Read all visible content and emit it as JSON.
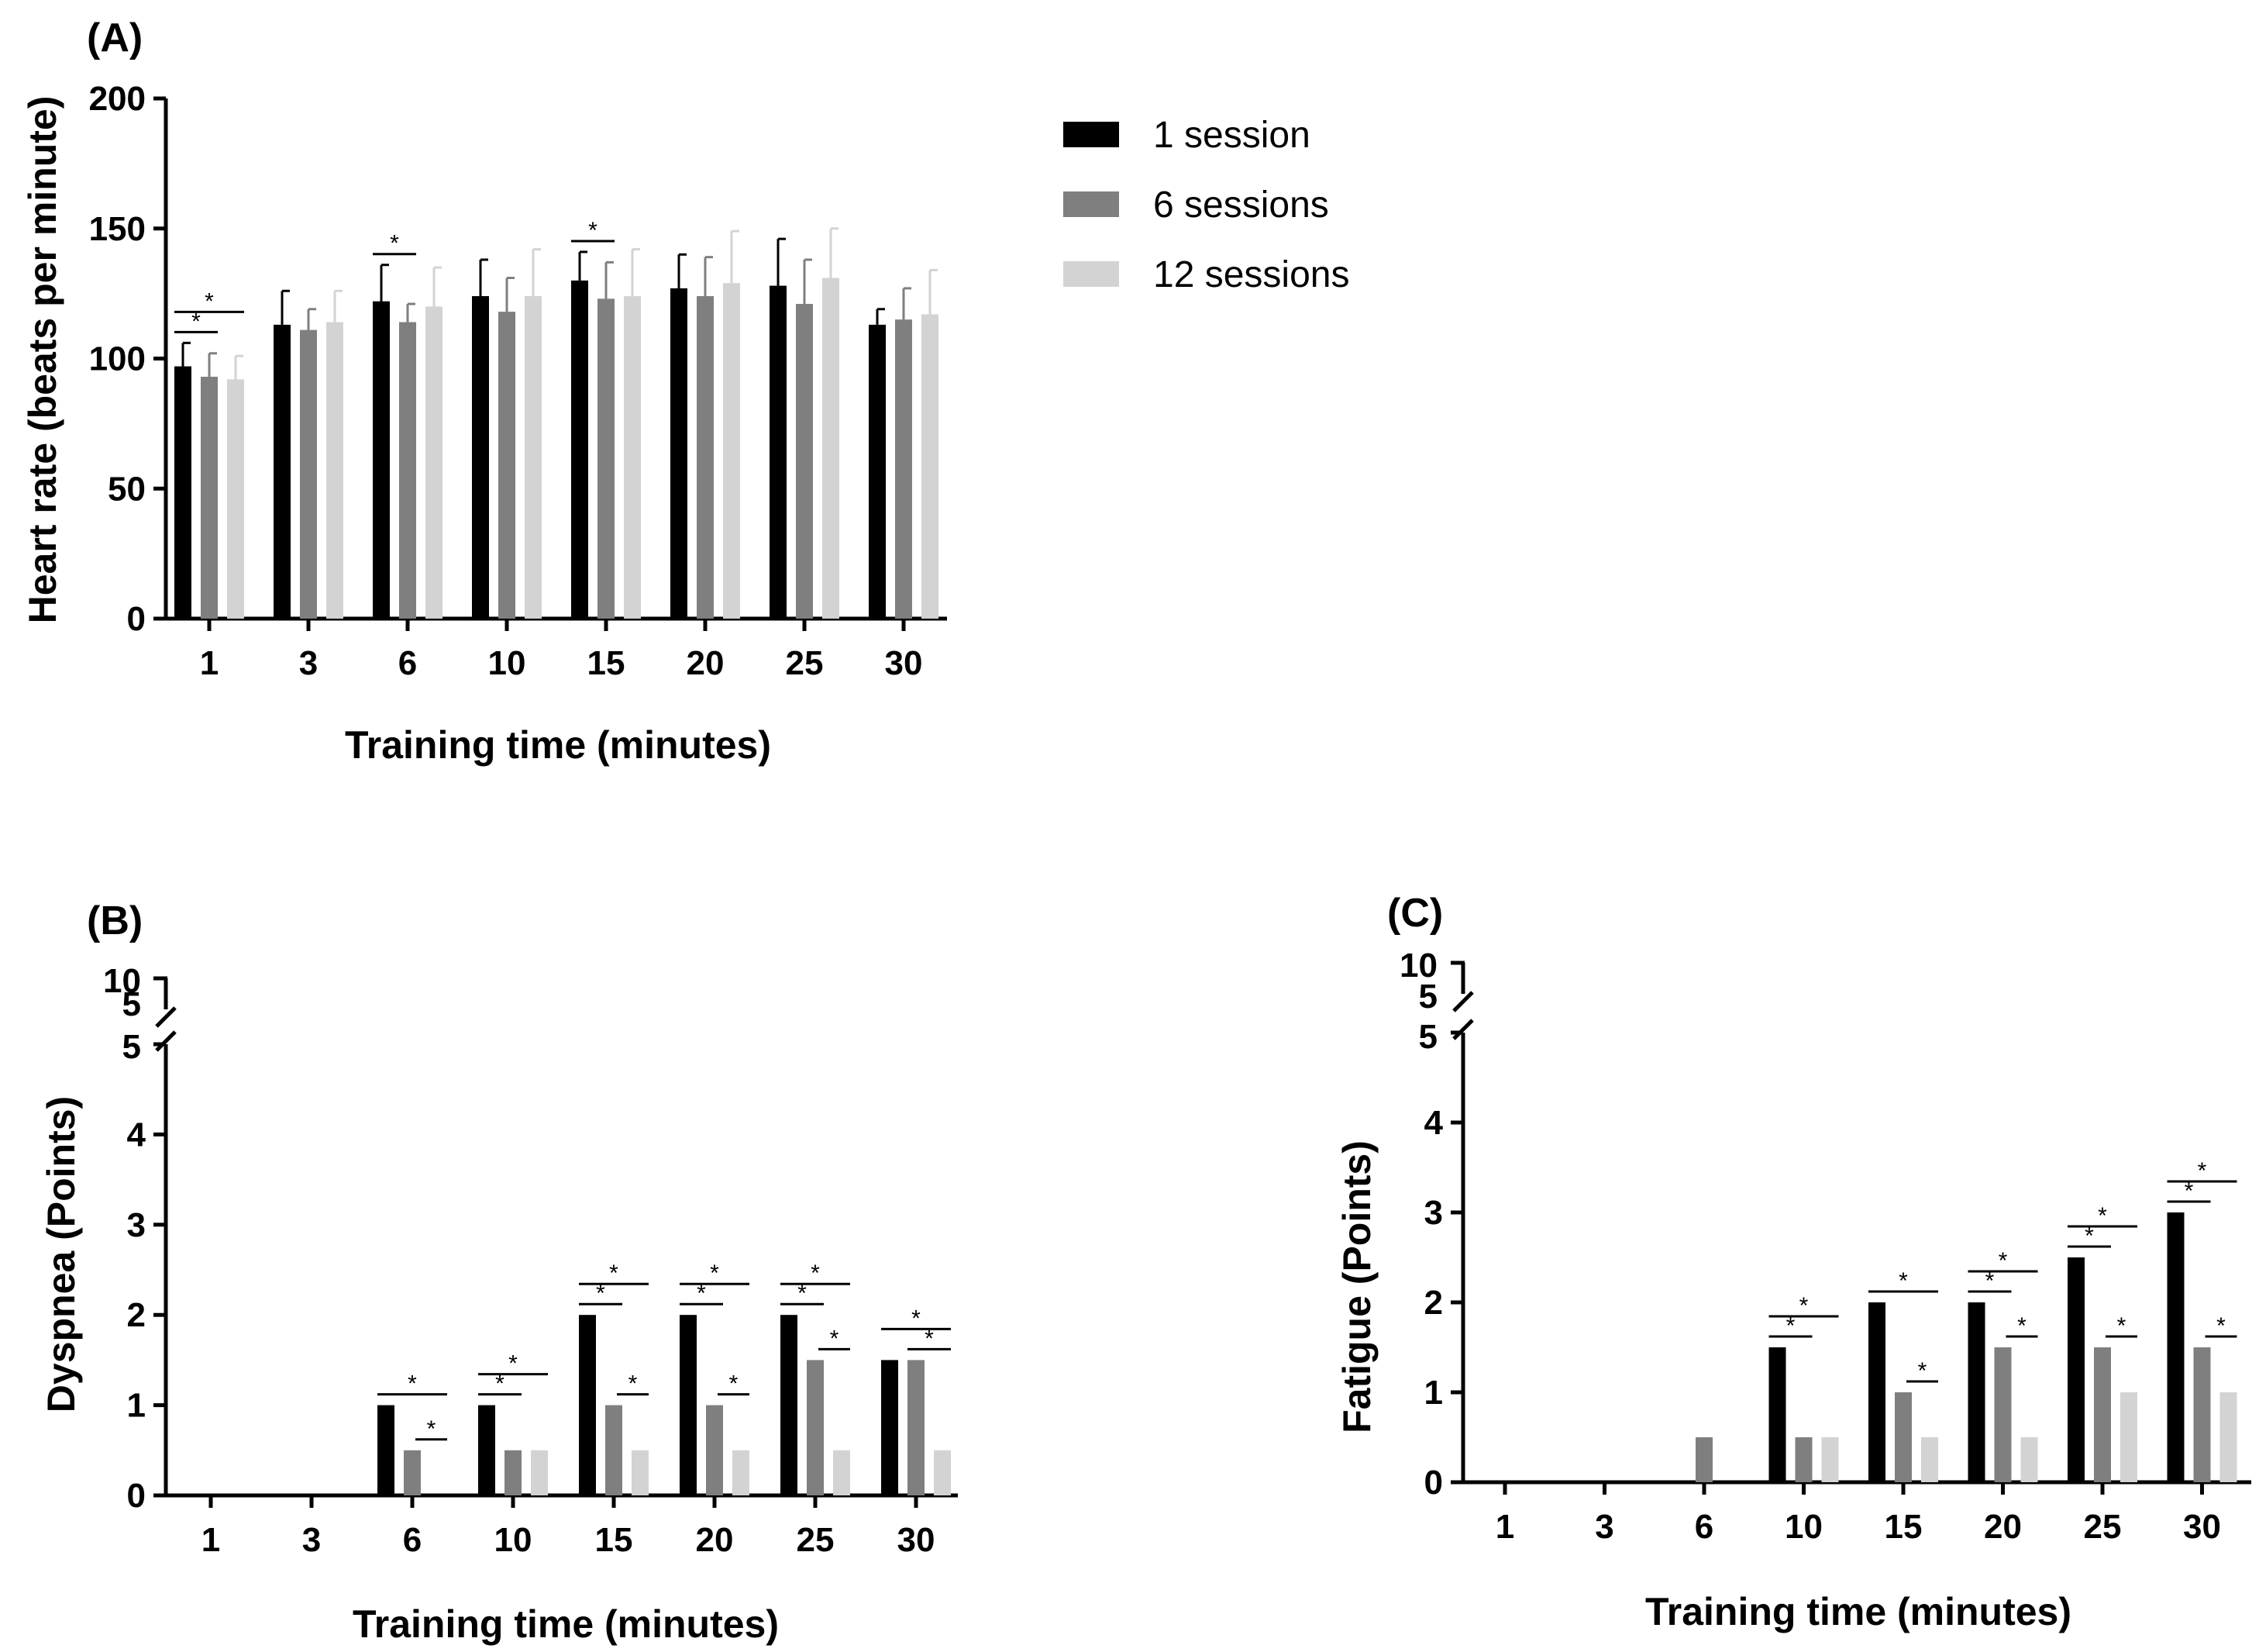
{
  "colors": {
    "one_session": "#000000",
    "six_sessions": "#7f7f7f",
    "twelve_sessions": "#d3d3d3",
    "axis": "#000000"
  },
  "legend": [
    "1 session",
    "6 sessions",
    "12 sessions"
  ],
  "chart_data": [
    {
      "id": "A",
      "panel_label": "(A)",
      "type": "bar",
      "title": "",
      "ylabel": "Heart rate  (beats per minute)",
      "xlabel": "Training time (minutes)",
      "ylim": [
        0,
        200
      ],
      "yticks": [
        "0",
        "50",
        "100",
        "150",
        "200"
      ],
      "categories": [
        "1",
        "3",
        "6",
        "10",
        "15",
        "20",
        "25",
        "30"
      ],
      "series": [
        {
          "name": "1 session",
          "values": [
            97,
            113,
            122,
            124,
            130,
            127,
            128,
            113
          ],
          "errors": [
            9,
            13,
            14,
            14,
            11,
            13,
            18,
            6
          ]
        },
        {
          "name": "6 sessions",
          "values": [
            93,
            111,
            114,
            118,
            123,
            124,
            121,
            115
          ],
          "errors": [
            9,
            8,
            7,
            13,
            14,
            15,
            17,
            12
          ]
        },
        {
          "name": "12 sessions",
          "values": [
            92,
            114,
            120,
            124,
            124,
            129,
            131,
            117
          ],
          "errors": [
            9,
            12,
            15,
            18,
            18,
            20,
            19,
            17
          ]
        }
      ],
      "significance": [
        {
          "category": "1",
          "label": "*"
        },
        {
          "category": "1",
          "label": "*"
        },
        {
          "category": "6",
          "label": "*"
        },
        {
          "category": "15",
          "label": "*"
        }
      ]
    },
    {
      "id": "B",
      "panel_label": "(B)",
      "type": "bar",
      "title": "",
      "ylabel": "Dyspnea (Points)",
      "xlabel": "Training time (minutes)",
      "ylim": [
        0,
        5
      ],
      "broken_axis_labels": [
        "10",
        "5",
        "5"
      ],
      "yticks": [
        "0",
        "1",
        "2",
        "3",
        "4"
      ],
      "categories": [
        "1",
        "3",
        "6",
        "10",
        "15",
        "20",
        "25",
        "30"
      ],
      "series": [
        {
          "name": "1 session",
          "values": [
            0,
            0,
            1,
            1,
            2,
            2,
            2,
            1.5
          ]
        },
        {
          "name": "6 sessions",
          "values": [
            0,
            0,
            0.5,
            0.5,
            1,
            1,
            1.5,
            1.5
          ]
        },
        {
          "name": "12 sessions",
          "values": [
            0,
            0,
            0,
            0.5,
            0.5,
            0.5,
            0.5,
            0.5
          ]
        }
      ],
      "significance_label": "*"
    },
    {
      "id": "C",
      "panel_label": "(C)",
      "type": "bar",
      "title": "",
      "ylabel": "Fatigue (Points)",
      "xlabel": "Training time (minutes)",
      "ylim": [
        0,
        5
      ],
      "broken_axis_labels": [
        "10",
        "5",
        "5"
      ],
      "yticks": [
        "0",
        "1",
        "2",
        "3",
        "4"
      ],
      "categories": [
        "1",
        "3",
        "6",
        "10",
        "15",
        "20",
        "25",
        "30"
      ],
      "series": [
        {
          "name": "1 session",
          "values": [
            0,
            0,
            0,
            1.5,
            2,
            2,
            2.5,
            3
          ]
        },
        {
          "name": "6 sessions",
          "values": [
            0,
            0,
            0.5,
            0.5,
            1,
            1.5,
            1.5,
            1.5
          ]
        },
        {
          "name": "12 sessions",
          "values": [
            0,
            0,
            0,
            0.5,
            0.5,
            0.5,
            1,
            1
          ]
        }
      ],
      "significance_label": "*"
    }
  ]
}
